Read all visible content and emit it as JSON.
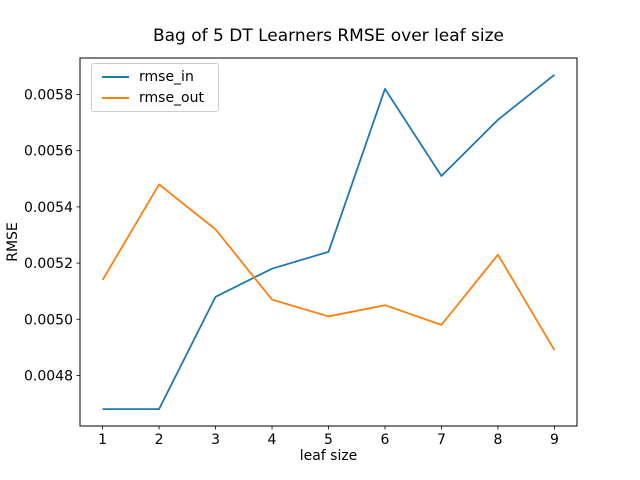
{
  "chart_data": {
    "type": "line",
    "title": "Bag of 5 DT Learners RMSE over leaf size",
    "xlabel": "leaf size",
    "ylabel": "RMSE",
    "x": [
      1,
      2,
      3,
      4,
      5,
      6,
      7,
      8,
      9
    ],
    "series": [
      {
        "name": "rmse_in",
        "color": "#1f77b4",
        "values": [
          0.00468,
          0.00468,
          0.00508,
          0.00518,
          0.00524,
          0.00582,
          0.00551,
          0.00571,
          0.00587
        ]
      },
      {
        "name": "rmse_out",
        "color": "#ff7f0e",
        "values": [
          0.00514,
          0.00548,
          0.00532,
          0.00507,
          0.00501,
          0.00505,
          0.00498,
          0.00523,
          0.00489
        ]
      }
    ],
    "xlim": [
      0.6,
      9.4
    ],
    "ylim": [
      0.00462,
      0.00593
    ],
    "xticks": {
      "values": [
        1,
        2,
        3,
        4,
        5,
        6,
        7,
        8,
        9
      ],
      "labels": [
        "1",
        "2",
        "3",
        "4",
        "5",
        "6",
        "7",
        "8",
        "9"
      ]
    },
    "yticks": {
      "values": [
        0.0048,
        0.005,
        0.0052,
        0.0054,
        0.0056,
        0.0058
      ],
      "labels": [
        "0.0048",
        "0.0050",
        "0.0052",
        "0.0054",
        "0.0056",
        "0.0058"
      ]
    },
    "grid": false,
    "legend_position": "upper left",
    "axis_color": "#000000"
  }
}
